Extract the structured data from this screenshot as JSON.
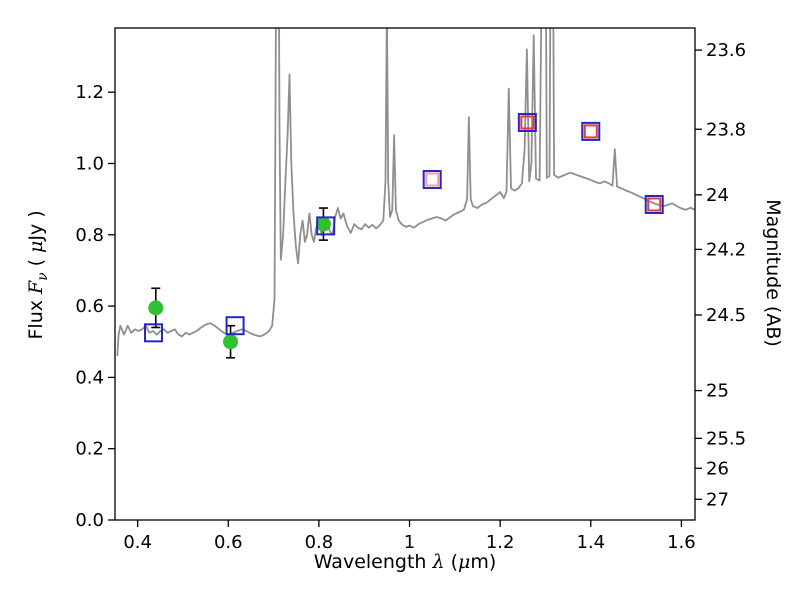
{
  "figure": {
    "background": "#ffffff",
    "frame_color": "#000000"
  },
  "chart_data": {
    "type": "line+scatter",
    "title": "",
    "xlabel": "Wavelength λ (μm)",
    "xlabel_parts": {
      "prefix": "Wavelength ",
      "lambda": "λ",
      "open": " (",
      "mu": "μ",
      "end": "m)"
    },
    "ylabel_left": "Flux Fν ( μJy )",
    "ylabel_left_parts": {
      "flux": "Flux ",
      "F": "F",
      "nu": "ν",
      "open": " ( ",
      "mu": "μ",
      "jy": "Jy",
      "close": " )"
    },
    "ylabel_right": "Magnitude (AB)",
    "xlim": [
      0.35,
      1.63
    ],
    "ylim": [
      0.0,
      1.38
    ],
    "grid": false,
    "legend": "none",
    "x_ticks": [
      {
        "label": "0.4",
        "value": 0.4
      },
      {
        "label": "0.6",
        "value": 0.6
      },
      {
        "label": "0.8",
        "value": 0.8
      },
      {
        "label": "1",
        "value": 1.0
      },
      {
        "label": "1.2",
        "value": 1.2
      },
      {
        "label": "1.4",
        "value": 1.4
      },
      {
        "label": "1.6",
        "value": 1.6
      }
    ],
    "y_ticks_left": [
      {
        "label": "0.0",
        "value": 0.0
      },
      {
        "label": "0.2",
        "value": 0.2
      },
      {
        "label": "0.4",
        "value": 0.4
      },
      {
        "label": "0.6",
        "value": 0.6
      },
      {
        "label": "0.8",
        "value": 0.8
      },
      {
        "label": "1.0",
        "value": 1.0
      },
      {
        "label": "1.2",
        "value": 1.2
      }
    ],
    "y_ticks_right": [
      {
        "label": "23.6",
        "flux": 1.318
      },
      {
        "label": "23.8",
        "flux": 1.096
      },
      {
        "label": "24",
        "flux": 0.912
      },
      {
        "label": "24.2",
        "flux": 0.759
      },
      {
        "label": "24.5",
        "flux": 0.575
      },
      {
        "label": "25",
        "flux": 0.363
      },
      {
        "label": "25.5",
        "flux": 0.229
      },
      {
        "label": "26",
        "flux": 0.145
      },
      {
        "label": "27",
        "flux": 0.058
      }
    ],
    "spectrum": {
      "name": "model-spectrum",
      "color": "#8f8f8f",
      "points": [
        [
          0.355,
          0.46
        ],
        [
          0.358,
          0.52
        ],
        [
          0.362,
          0.545
        ],
        [
          0.37,
          0.52
        ],
        [
          0.378,
          0.545
        ],
        [
          0.386,
          0.525
        ],
        [
          0.394,
          0.535
        ],
        [
          0.402,
          0.53
        ],
        [
          0.41,
          0.535
        ],
        [
          0.418,
          0.545
        ],
        [
          0.426,
          0.525
        ],
        [
          0.434,
          0.53
        ],
        [
          0.442,
          0.52
        ],
        [
          0.45,
          0.53
        ],
        [
          0.458,
          0.535
        ],
        [
          0.466,
          0.525
        ],
        [
          0.474,
          0.53
        ],
        [
          0.482,
          0.535
        ],
        [
          0.49,
          0.52
        ],
        [
          0.498,
          0.515
        ],
        [
          0.506,
          0.525
        ],
        [
          0.514,
          0.52
        ],
        [
          0.522,
          0.525
        ],
        [
          0.53,
          0.53
        ],
        [
          0.54,
          0.54
        ],
        [
          0.55,
          0.548
        ],
        [
          0.56,
          0.552
        ],
        [
          0.57,
          0.545
        ],
        [
          0.58,
          0.535
        ],
        [
          0.59,
          0.525
        ],
        [
          0.6,
          0.52
        ],
        [
          0.61,
          0.525
        ],
        [
          0.62,
          0.53
        ],
        [
          0.63,
          0.535
        ],
        [
          0.64,
          0.53
        ],
        [
          0.65,
          0.523
        ],
        [
          0.66,
          0.518
        ],
        [
          0.67,
          0.515
        ],
        [
          0.68,
          0.52
        ],
        [
          0.69,
          0.53
        ],
        [
          0.697,
          0.545
        ],
        [
          0.702,
          0.62
        ],
        [
          0.706,
          1.6
        ],
        [
          0.709,
          2.3
        ],
        [
          0.713,
          1.1
        ],
        [
          0.716,
          0.73
        ],
        [
          0.721,
          0.8
        ],
        [
          0.726,
          0.95
        ],
        [
          0.731,
          1.08
        ],
        [
          0.735,
          1.25
        ],
        [
          0.739,
          1.0
        ],
        [
          0.744,
          0.86
        ],
        [
          0.749,
          0.77
        ],
        [
          0.754,
          0.72
        ],
        [
          0.759,
          0.8
        ],
        [
          0.764,
          0.84
        ],
        [
          0.769,
          0.78
        ],
        [
          0.774,
          0.8
        ],
        [
          0.779,
          0.86
        ],
        [
          0.784,
          0.8
        ],
        [
          0.789,
          0.78
        ],
        [
          0.794,
          0.82
        ],
        [
          0.8,
          0.84
        ],
        [
          0.806,
          0.8
        ],
        [
          0.812,
          0.83
        ],
        [
          0.818,
          0.845
        ],
        [
          0.824,
          0.81
        ],
        [
          0.83,
          0.8
        ],
        [
          0.836,
          0.85
        ],
        [
          0.842,
          0.875
        ],
        [
          0.848,
          0.845
        ],
        [
          0.854,
          0.86
        ],
        [
          0.862,
          0.825
        ],
        [
          0.87,
          0.805
        ],
        [
          0.878,
          0.83
        ],
        [
          0.886,
          0.82
        ],
        [
          0.894,
          0.815
        ],
        [
          0.902,
          0.83
        ],
        [
          0.91,
          0.82
        ],
        [
          0.918,
          0.828
        ],
        [
          0.926,
          0.818
        ],
        [
          0.934,
          0.826
        ],
        [
          0.942,
          0.84
        ],
        [
          0.947,
          0.95
        ],
        [
          0.95,
          1.45
        ],
        [
          0.953,
          0.95
        ],
        [
          0.957,
          0.85
        ],
        [
          0.962,
          0.87
        ],
        [
          0.966,
          1.08
        ],
        [
          0.97,
          0.87
        ],
        [
          0.976,
          0.84
        ],
        [
          0.984,
          0.828
        ],
        [
          0.992,
          0.822
        ],
        [
          1.0,
          0.826
        ],
        [
          1.01,
          0.82
        ],
        [
          1.02,
          0.83
        ],
        [
          1.03,
          0.836
        ],
        [
          1.04,
          0.842
        ],
        [
          1.05,
          0.846
        ],
        [
          1.06,
          0.85
        ],
        [
          1.07,
          0.846
        ],
        [
          1.08,
          0.84
        ],
        [
          1.09,
          0.85
        ],
        [
          1.1,
          0.858
        ],
        [
          1.11,
          0.864
        ],
        [
          1.12,
          0.87
        ],
        [
          1.127,
          0.9
        ],
        [
          1.131,
          1.13
        ],
        [
          1.135,
          0.9
        ],
        [
          1.14,
          0.88
        ],
        [
          1.15,
          0.875
        ],
        [
          1.16,
          0.885
        ],
        [
          1.17,
          0.89
        ],
        [
          1.18,
          0.9
        ],
        [
          1.19,
          0.91
        ],
        [
          1.2,
          0.92
        ],
        [
          1.208,
          0.903
        ],
        [
          1.214,
          0.92
        ],
        [
          1.219,
          1.21
        ],
        [
          1.224,
          0.93
        ],
        [
          1.232,
          0.924
        ],
        [
          1.24,
          0.93
        ],
        [
          1.248,
          0.944
        ],
        [
          1.254,
          1.04
        ],
        [
          1.259,
          1.32
        ],
        [
          1.264,
          0.95
        ],
        [
          1.269,
          1.0
        ],
        [
          1.274,
          1.36
        ],
        [
          1.279,
          0.958
        ],
        [
          1.287,
          0.952
        ],
        [
          1.293,
          1.7
        ],
        [
          1.298,
          2.3
        ],
        [
          1.303,
          0.96
        ],
        [
          1.309,
          0.965
        ],
        [
          1.314,
          2.3
        ],
        [
          1.319,
          0.968
        ],
        [
          1.328,
          0.96
        ],
        [
          1.337,
          0.965
        ],
        [
          1.346,
          0.97
        ],
        [
          1.355,
          0.974
        ],
        [
          1.364,
          0.97
        ],
        [
          1.373,
          0.966
        ],
        [
          1.382,
          0.962
        ],
        [
          1.391,
          0.958
        ],
        [
          1.4,
          0.954
        ],
        [
          1.41,
          0.948
        ],
        [
          1.42,
          0.944
        ],
        [
          1.43,
          0.95
        ],
        [
          1.44,
          0.944
        ],
        [
          1.448,
          0.938
        ],
        [
          1.453,
          1.04
        ],
        [
          1.458,
          0.935
        ],
        [
          1.468,
          0.93
        ],
        [
          1.478,
          0.924
        ],
        [
          1.49,
          0.918
        ],
        [
          1.5,
          0.912
        ],
        [
          1.51,
          0.906
        ],
        [
          1.52,
          0.9
        ],
        [
          1.53,
          0.894
        ],
        [
          1.54,
          0.888
        ],
        [
          1.55,
          0.884
        ],
        [
          1.56,
          0.88
        ],
        [
          1.57,
          0.884
        ],
        [
          1.58,
          0.888
        ],
        [
          1.59,
          0.88
        ],
        [
          1.6,
          0.874
        ],
        [
          1.61,
          0.87
        ],
        [
          1.62,
          0.876
        ],
        [
          1.63,
          0.87
        ]
      ]
    },
    "observed_points": {
      "name": "observed-photometry",
      "marker": "circle",
      "color": "#2fc12f",
      "errorbar_color": "#000000",
      "points": [
        {
          "x": 0.44,
          "y": 0.595,
          "yerr": 0.055
        },
        {
          "x": 0.605,
          "y": 0.5,
          "yerr": 0.045
        },
        {
          "x": 0.81,
          "y": 0.83,
          "yerr": 0.045
        }
      ]
    },
    "model_squares_blue": {
      "name": "model-photometry-blue",
      "marker": "open-square",
      "color": "#2525c8",
      "points": [
        {
          "x": 0.435,
          "y": 0.525
        },
        {
          "x": 0.615,
          "y": 0.545
        },
        {
          "x": 0.815,
          "y": 0.825
        },
        {
          "x": 1.05,
          "y": 0.955
        },
        {
          "x": 1.26,
          "y": 1.115
        },
        {
          "x": 1.4,
          "y": 1.09
        },
        {
          "x": 1.54,
          "y": 0.885
        }
      ]
    },
    "model_squares_red": {
      "name": "model-photometry-red",
      "marker": "open-square",
      "points": [
        {
          "x": 1.05,
          "y": 0.955,
          "color": "#f2a0ae"
        },
        {
          "x": 1.26,
          "y": 1.115,
          "color": "#e63b38"
        },
        {
          "x": 1.4,
          "y": 1.09,
          "color": "#e63b38"
        },
        {
          "x": 1.54,
          "y": 0.885,
          "color": "#e63b38"
        }
      ]
    }
  }
}
